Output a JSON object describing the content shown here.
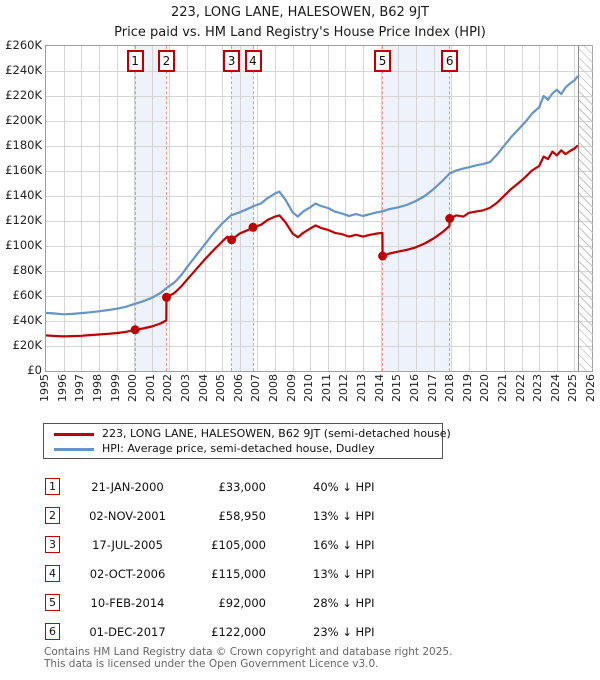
{
  "title": {
    "line1": "223, LONG LANE, HALESOWEN, B62 9JT",
    "line2": "Price paid vs. HM Land Registry's House Price Index (HPI)"
  },
  "colors": {
    "price_paid": "#c00000",
    "hpi": "#6495c8",
    "sale_dash": "#f2938f",
    "band_fill": "#edf2fb",
    "grid": "#d5d5d5",
    "frame": "#a0a0a0"
  },
  "chart_data": {
    "type": "line",
    "x_axis": {
      "start": 1995,
      "end": 2026,
      "tick_labels": [
        "1995",
        "1996",
        "1997",
        "1998",
        "1999",
        "2000",
        "2001",
        "2002",
        "2003",
        "2004",
        "2005",
        "2006",
        "2007",
        "2008",
        "2009",
        "2010",
        "2011",
        "2012",
        "2013",
        "2014",
        "2015",
        "2016",
        "2017",
        "2018",
        "2019",
        "2020",
        "2021",
        "2022",
        "2023",
        "2024",
        "2025",
        "2026"
      ]
    },
    "y_axis": {
      "min": 0,
      "max": 260000,
      "tick_step": 20000,
      "tick_labels": [
        "£0",
        "£20K",
        "£40K",
        "£60K",
        "£80K",
        "£100K",
        "£120K",
        "£140K",
        "£160K",
        "£180K",
        "£200K",
        "£220K",
        "£240K",
        "£260K"
      ]
    },
    "grid": true,
    "future_hatch_start": 2025.2,
    "shaded_bands": [
      [
        2000.06,
        2001.84
      ],
      [
        2005.54,
        2006.75
      ],
      [
        2014.11,
        2017.92
      ]
    ],
    "series": [
      {
        "name": "223, LONG LANE, HALESOWEN, B62 9JT (semi-detached house)",
        "color": "#c00000",
        "points": [
          [
            1995.0,
            28500
          ],
          [
            1995.5,
            28000
          ],
          [
            1996.0,
            27700
          ],
          [
            1996.5,
            27900
          ],
          [
            1997.0,
            28200
          ],
          [
            1997.5,
            28700
          ],
          [
            1998.0,
            29200
          ],
          [
            1998.5,
            29700
          ],
          [
            1999.0,
            30300
          ],
          [
            1999.5,
            31200
          ],
          [
            2000.06,
            33000
          ],
          [
            2000.5,
            34000
          ],
          [
            2001.0,
            35600
          ],
          [
            2001.5,
            38000
          ],
          [
            2001.83,
            40500
          ],
          [
            2001.84,
            58950
          ],
          [
            2002.3,
            62500
          ],
          [
            2002.7,
            68000
          ],
          [
            2003.0,
            73000
          ],
          [
            2003.5,
            81000
          ],
          [
            2004.0,
            89000
          ],
          [
            2004.5,
            96500
          ],
          [
            2005.0,
            103500
          ],
          [
            2005.3,
            107500
          ],
          [
            2005.54,
            105000
          ],
          [
            2006.0,
            110000
          ],
          [
            2006.5,
            113000
          ],
          [
            2006.75,
            115000
          ],
          [
            2007.2,
            117000
          ],
          [
            2007.6,
            121000
          ],
          [
            2008.0,
            123500
          ],
          [
            2008.25,
            124500
          ],
          [
            2008.6,
            119000
          ],
          [
            2009.0,
            110000
          ],
          [
            2009.3,
            107000
          ],
          [
            2009.6,
            110500
          ],
          [
            2010.0,
            114000
          ],
          [
            2010.3,
            116500
          ],
          [
            2010.6,
            114500
          ],
          [
            2011.0,
            113000
          ],
          [
            2011.4,
            110500
          ],
          [
            2011.8,
            109500
          ],
          [
            2012.2,
            107500
          ],
          [
            2012.6,
            109000
          ],
          [
            2013.0,
            107500
          ],
          [
            2013.4,
            109000
          ],
          [
            2013.8,
            110000
          ],
          [
            2014.1,
            110500
          ],
          [
            2014.11,
            92000
          ],
          [
            2014.5,
            94000
          ],
          [
            2015.0,
            95500
          ],
          [
            2015.5,
            97000
          ],
          [
            2016.0,
            99000
          ],
          [
            2016.5,
            102000
          ],
          [
            2017.0,
            106000
          ],
          [
            2017.5,
            111000
          ],
          [
            2017.91,
            116000
          ],
          [
            2017.92,
            122000
          ],
          [
            2018.3,
            124500
          ],
          [
            2018.7,
            123500
          ],
          [
            2019.0,
            126500
          ],
          [
            2019.4,
            127500
          ],
          [
            2019.8,
            128500
          ],
          [
            2020.2,
            130500
          ],
          [
            2020.6,
            134500
          ],
          [
            2021.0,
            140000
          ],
          [
            2021.4,
            145500
          ],
          [
            2021.8,
            150000
          ],
          [
            2022.2,
            155000
          ],
          [
            2022.6,
            160500
          ],
          [
            2023.0,
            164000
          ],
          [
            2023.25,
            171500
          ],
          [
            2023.5,
            169500
          ],
          [
            2023.75,
            175500
          ],
          [
            2024.0,
            172500
          ],
          [
            2024.25,
            176500
          ],
          [
            2024.5,
            173500
          ],
          [
            2024.75,
            176000
          ],
          [
            2025.0,
            178000
          ],
          [
            2025.2,
            180500
          ]
        ]
      },
      {
        "name": "HPI: Average price, semi-detached house, Dudley",
        "color": "#6495c8",
        "points": [
          [
            1995.0,
            46500
          ],
          [
            1995.5,
            46000
          ],
          [
            1996.0,
            45400
          ],
          [
            1996.5,
            45700
          ],
          [
            1997.0,
            46300
          ],
          [
            1997.5,
            47000
          ],
          [
            1998.0,
            47800
          ],
          [
            1998.5,
            48700
          ],
          [
            1999.0,
            49800
          ],
          [
            1999.5,
            51300
          ],
          [
            2000.0,
            53500
          ],
          [
            2000.5,
            55800
          ],
          [
            2001.0,
            58500
          ],
          [
            2001.5,
            62500
          ],
          [
            2001.9,
            67000
          ],
          [
            2002.3,
            71000
          ],
          [
            2002.7,
            77000
          ],
          [
            2003.0,
            83000
          ],
          [
            2003.5,
            92000
          ],
          [
            2004.0,
            101000
          ],
          [
            2004.5,
            110000
          ],
          [
            2005.0,
            118000
          ],
          [
            2005.5,
            124500
          ],
          [
            2006.0,
            127000
          ],
          [
            2006.5,
            130000
          ],
          [
            2006.8,
            132000
          ],
          [
            2007.2,
            134000
          ],
          [
            2007.6,
            138500
          ],
          [
            2008.0,
            142000
          ],
          [
            2008.25,
            143500
          ],
          [
            2008.6,
            137000
          ],
          [
            2009.0,
            127000
          ],
          [
            2009.3,
            123500
          ],
          [
            2009.6,
            127500
          ],
          [
            2010.0,
            131000
          ],
          [
            2010.3,
            134000
          ],
          [
            2010.6,
            132000
          ],
          [
            2011.0,
            130500
          ],
          [
            2011.4,
            127500
          ],
          [
            2011.8,
            126000
          ],
          [
            2012.2,
            124000
          ],
          [
            2012.6,
            125500
          ],
          [
            2013.0,
            124000
          ],
          [
            2013.4,
            125500
          ],
          [
            2013.8,
            127000
          ],
          [
            2014.1,
            127800
          ],
          [
            2014.5,
            129500
          ],
          [
            2015.0,
            131000
          ],
          [
            2015.5,
            133000
          ],
          [
            2016.0,
            136000
          ],
          [
            2016.5,
            140000
          ],
          [
            2017.0,
            145500
          ],
          [
            2017.5,
            152000
          ],
          [
            2017.92,
            158000
          ],
          [
            2018.3,
            160500
          ],
          [
            2018.7,
            162000
          ],
          [
            2019.0,
            163000
          ],
          [
            2019.4,
            164500
          ],
          [
            2019.8,
            165500
          ],
          [
            2020.2,
            167000
          ],
          [
            2020.6,
            173000
          ],
          [
            2021.0,
            180000
          ],
          [
            2021.4,
            187000
          ],
          [
            2021.8,
            193000
          ],
          [
            2022.2,
            199000
          ],
          [
            2022.6,
            206000
          ],
          [
            2023.0,
            211000
          ],
          [
            2023.25,
            220000
          ],
          [
            2023.5,
            217000
          ],
          [
            2023.75,
            222000
          ],
          [
            2024.0,
            225000
          ],
          [
            2024.25,
            221500
          ],
          [
            2024.5,
            227000
          ],
          [
            2024.75,
            230000
          ],
          [
            2025.0,
            232500
          ],
          [
            2025.2,
            236000
          ]
        ]
      }
    ],
    "sale_markers": [
      {
        "num": "1",
        "x": 2000.06,
        "price": 33000
      },
      {
        "num": "2",
        "x": 2001.84,
        "price": 58950
      },
      {
        "num": "3",
        "x": 2005.54,
        "price": 105000
      },
      {
        "num": "4",
        "x": 2006.75,
        "price": 115000
      },
      {
        "num": "5",
        "x": 2014.11,
        "price": 92000
      },
      {
        "num": "6",
        "x": 2017.92,
        "price": 122000
      }
    ]
  },
  "legend": {
    "items": [
      {
        "label": "223, LONG LANE, HALESOWEN, B62 9JT (semi-detached house)",
        "color": "#c00000"
      },
      {
        "label": "HPI: Average price, semi-detached house, Dudley",
        "color": "#6495c8"
      }
    ]
  },
  "table": {
    "rows": [
      {
        "num": "1",
        "date": "21-JAN-2000",
        "price": "£33,000",
        "vs_hpi": "40% ↓ HPI"
      },
      {
        "num": "2",
        "date": "02-NOV-2001",
        "price": "£58,950",
        "vs_hpi": "13% ↓ HPI"
      },
      {
        "num": "3",
        "date": "17-JUL-2005",
        "price": "£105,000",
        "vs_hpi": "16% ↓ HPI"
      },
      {
        "num": "4",
        "date": "02-OCT-2006",
        "price": "£115,000",
        "vs_hpi": "13% ↓ HPI"
      },
      {
        "num": "5",
        "date": "10-FEB-2014",
        "price": "£92,000",
        "vs_hpi": "28% ↓ HPI"
      },
      {
        "num": "6",
        "date": "01-DEC-2017",
        "price": "£122,000",
        "vs_hpi": "23% ↓ HPI"
      }
    ]
  },
  "footer": {
    "line1": "Contains HM Land Registry data © Crown copyright and database right 2025.",
    "line2": "This data is licensed under the Open Government Licence v3.0."
  }
}
